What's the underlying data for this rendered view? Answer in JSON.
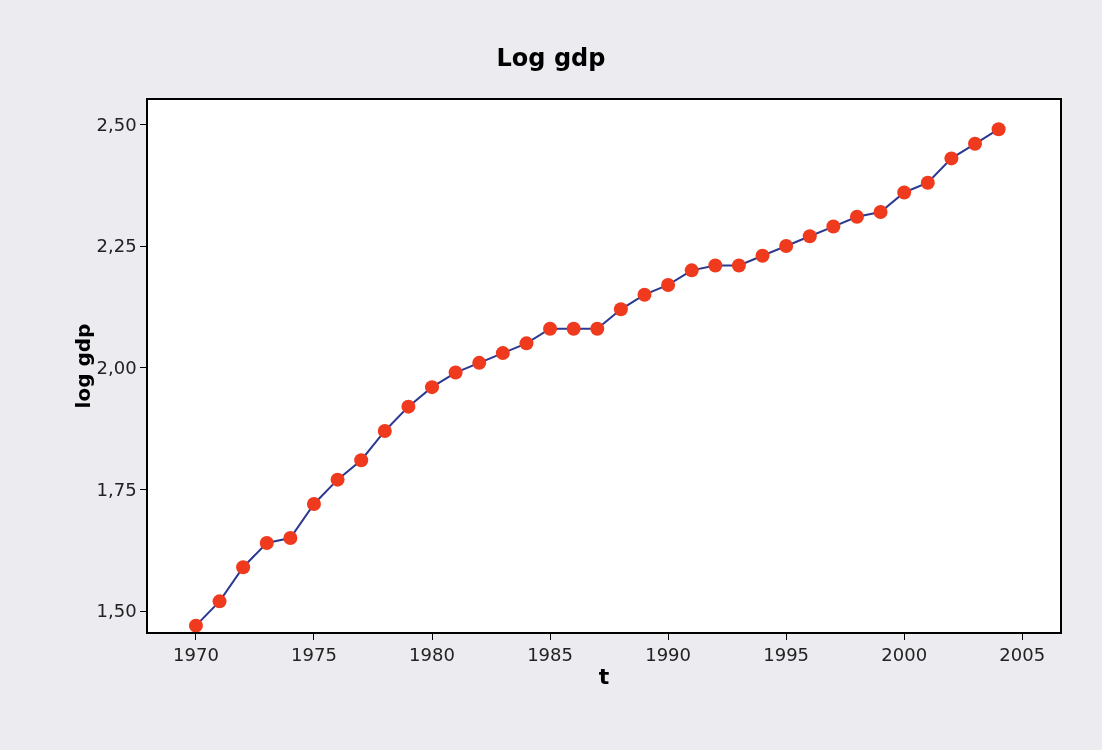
{
  "chart_data": {
    "type": "line",
    "title": "Log gdp",
    "xlabel": "t",
    "ylabel": "log gdp",
    "x": [
      1970,
      1971,
      1972,
      1973,
      1974,
      1975,
      1976,
      1977,
      1978,
      1979,
      1980,
      1981,
      1982,
      1983,
      1984,
      1985,
      1986,
      1987,
      1988,
      1989,
      1990,
      1991,
      1992,
      1993,
      1994,
      1995,
      1996,
      1997,
      1998,
      1999,
      2000,
      2001,
      2002,
      2003,
      2004
    ],
    "series": [
      {
        "color": "#2b3990",
        "colors": [
          "#f03a1e",
          "#f03a1e",
          "#f03a1e",
          "#f03a1e",
          "#f03a1e",
          "#f03a1e",
          "#f03a1e",
          "#f03a1e",
          "#f03a1e",
          "#f03a1e",
          "#f03a1e",
          "#f03a1e",
          "#f03a1e",
          "#f03a1e",
          "#f03a1e",
          "#f03a1e",
          "#f03a1e",
          "#f03a1e",
          "#f03a1e",
          "#f03a1e",
          "#f03a1e",
          "#f03a1e",
          "#f03a1e",
          "#f03a1e",
          "#f03a1e",
          "#f03a1e",
          "#f03a1e",
          "#f03a1e",
          "#f03a1e",
          "#f03a1e",
          "#f03a1e",
          "#f03a1e",
          "#f03a1e",
          "#f03a1e",
          "#f03a1e"
        ],
        "values": [
          1.47,
          1.52,
          1.59,
          1.64,
          1.65,
          1.72,
          1.77,
          1.81,
          1.87,
          1.92,
          1.96,
          1.99,
          2.01,
          2.03,
          2.05,
          2.08,
          2.08,
          2.08,
          2.12,
          2.15,
          2.17,
          2.2,
          2.21,
          2.21,
          2.23,
          2.25,
          2.27,
          2.29,
          2.31,
          2.32,
          2.36,
          2.38,
          2.43,
          2.46,
          2.49
        ]
      }
    ],
    "xlim": [
      1967.97,
      2006.6
    ],
    "xticks": [
      1970,
      1975,
      1980,
      1985,
      1990,
      1995,
      2000,
      2005
    ],
    "ylim": [
      1.457,
      2.55
    ],
    "yticks": [
      {
        "value": 1.5,
        "label": "1,50"
      },
      {
        "value": 1.75,
        "label": "1,75"
      },
      {
        "value": 2.0,
        "label": "2,00"
      },
      {
        "value": 2.25,
        "label": "2,25"
      },
      {
        "value": 2.5,
        "label": "2,50"
      }
    ],
    "grid": false,
    "marker": "circle",
    "line_style": "solid"
  }
}
